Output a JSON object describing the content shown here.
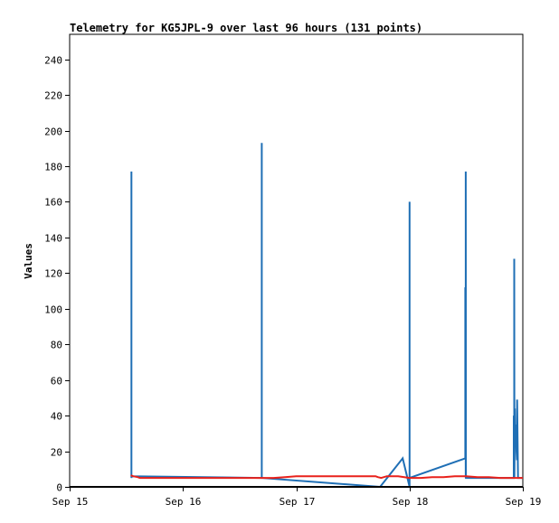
{
  "chart_data": {
    "type": "line",
    "title": "Telemetry for KG5JPL-9 over last 96 hours (131 points)",
    "xlabel": "",
    "ylabel": "Values",
    "ylim": [
      0,
      254
    ],
    "y_ticks": [
      0,
      20,
      40,
      60,
      80,
      100,
      120,
      140,
      160,
      180,
      200,
      220,
      240
    ],
    "x_categories": [
      "Sep 15",
      "Sep 16",
      "Sep 17",
      "Sep 18",
      "Sep 19"
    ],
    "xlim_days": [
      0,
      4
    ],
    "grid": false,
    "colors": {
      "blue": "#1f6fb5",
      "red": "#e8211b",
      "black": "#000000"
    },
    "series": [
      {
        "color": "blue",
        "x_days": [
          0.545,
          0.545,
          0.545,
          0.548,
          1.696,
          1.696,
          1.696,
          2.74,
          2.94,
          3.0,
          3.0,
          3.0,
          3.492,
          3.492,
          3.496,
          3.496,
          3.498,
          3.92,
          3.92,
          3.924,
          3.924,
          3.926,
          3.93,
          3.932,
          3.94,
          3.944,
          3.948,
          3.95,
          3.958,
          3.96,
          4.0
        ],
        "values": [
          5,
          177,
          5,
          6,
          5,
          193,
          5,
          0,
          16,
          0,
          160,
          5,
          16,
          112,
          5,
          177,
          5,
          5,
          40,
          20,
          128,
          5,
          44,
          30,
          35,
          20,
          15,
          49,
          5,
          5,
          5
        ]
      },
      {
        "color": "red",
        "x_days": [
          0.54,
          0.56,
          0.6,
          0.62,
          0.7,
          0.8,
          1.0,
          1.2,
          1.4,
          1.6,
          1.8,
          1.9,
          2.0,
          2.2,
          2.4,
          2.6,
          2.7,
          2.72,
          2.75,
          2.8,
          2.9,
          3.0,
          3.1,
          3.2,
          3.3,
          3.4,
          3.5,
          3.6,
          3.7,
          3.8,
          3.9,
          4.0
        ],
        "values": [
          6.5,
          6.0,
          5.5,
          5.0,
          5.0,
          5.0,
          5.0,
          5.0,
          5.0,
          5.0,
          5.0,
          5.5,
          6.0,
          6.0,
          6.0,
          6.0,
          6.0,
          5.5,
          5.0,
          6.0,
          6.0,
          5.0,
          5.0,
          5.5,
          5.5,
          6.0,
          6.0,
          5.5,
          5.5,
          5.0,
          5.0,
          5.0
        ]
      },
      {
        "color": "black",
        "x_days": [
          0,
          4
        ],
        "values": [
          0,
          0
        ]
      }
    ]
  }
}
